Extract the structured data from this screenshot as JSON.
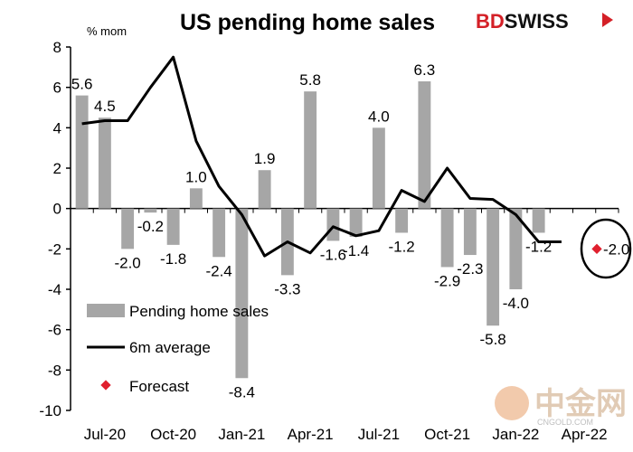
{
  "chart_data": {
    "type": "bar",
    "title": "US pending home sales",
    "unit_label": "% mom",
    "ylim": [
      -10,
      8
    ],
    "yticks": [
      8,
      6,
      4,
      2,
      0,
      -2,
      -4,
      -6,
      -8,
      -10
    ],
    "x_tick_labels": [
      "Jul-20",
      "Oct-20",
      "Jan-21",
      "Apr-21",
      "Jul-21",
      "Oct-21",
      "Jan-22",
      "Apr-22"
    ],
    "categories": [
      "Jun-20",
      "Jul-20",
      "Aug-20",
      "Sep-20",
      "Oct-20",
      "Nov-20",
      "Dec-20",
      "Jan-21",
      "Feb-21",
      "Mar-21",
      "Apr-21",
      "May-21",
      "Jun-21",
      "Jul-21",
      "Aug-21",
      "Sep-21",
      "Oct-21",
      "Nov-21",
      "Dec-21",
      "Jan-22",
      "Feb-22",
      "Mar-22",
      "Apr-22",
      "May-22"
    ],
    "series": [
      {
        "name": "Pending home sales",
        "type": "bar",
        "color": "#a6a6a6",
        "values": [
          5.6,
          4.5,
          -2.0,
          -0.2,
          -1.8,
          1.0,
          -2.4,
          -8.4,
          1.9,
          -3.3,
          5.8,
          -1.6,
          -1.4,
          4.0,
          -1.2,
          6.3,
          -2.9,
          -2.3,
          -5.8,
          -4.0,
          -1.2,
          null,
          null,
          null
        ],
        "labels": [
          "5.6",
          "4.5",
          "-2.0",
          "-0.2",
          "-1.8",
          "1.0",
          "-2.4",
          "-8.4",
          "1.9",
          "-3.3",
          "5.8",
          "-1.6",
          "-1.4",
          "4.0",
          "-1.2",
          "6.3",
          "-2.9",
          "-2.3",
          "-5.8",
          "-4.0",
          "-1.2",
          "",
          "",
          ""
        ]
      },
      {
        "name": "6m average",
        "type": "line",
        "color": "#000000",
        "values": [
          4.2,
          4.35,
          4.35,
          6.0,
          7.5,
          3.35,
          1.1,
          -0.3,
          -2.35,
          -1.65,
          -2.2,
          -0.9,
          -1.35,
          -1.1,
          0.9,
          0.35,
          2.0,
          0.5,
          0.45,
          -0.3,
          -1.65,
          -1.65,
          null,
          null
        ]
      },
      {
        "name": "Forecast",
        "type": "scatter",
        "color": "#e0202e",
        "values": [
          null,
          null,
          null,
          null,
          null,
          null,
          null,
          null,
          null,
          null,
          null,
          null,
          null,
          null,
          null,
          null,
          null,
          null,
          null,
          null,
          null,
          -2.0,
          null,
          null
        ],
        "labels": [
          "",
          "",
          "",
          "",
          "",
          "",
          "",
          "",
          "",
          "",
          "",
          "",
          "",
          "",
          "",
          "",
          "",
          "",
          "",
          "",
          "",
          "-2.0",
          "",
          ""
        ]
      }
    ],
    "legend": {
      "placement": "bottom-left",
      "items": [
        "Pending home sales",
        "6m average",
        "Forecast"
      ]
    }
  },
  "brand": {
    "name_part1": "BD",
    "name_part2": "SWISS",
    "color1": "#d42027",
    "color2": "#111111"
  },
  "watermark": {
    "chinese_text": "中金网",
    "url_text": "CNGOLD.COM"
  }
}
